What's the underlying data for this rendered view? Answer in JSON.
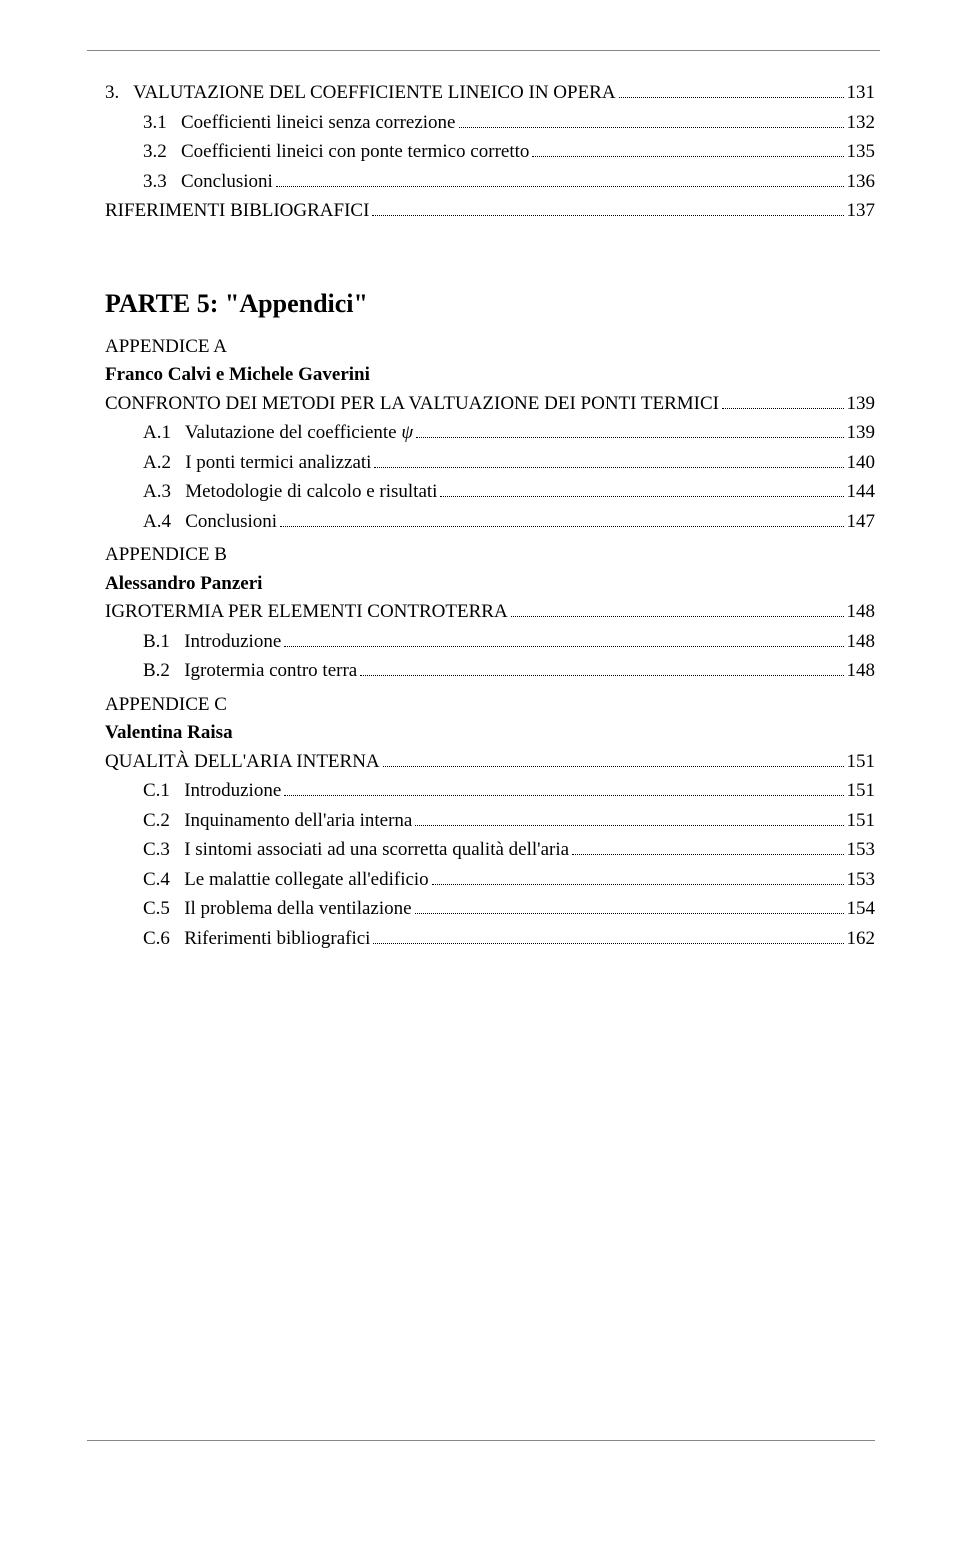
{
  "hr_color": "#888888",
  "top_section": {
    "heading": {
      "num": "3.",
      "title": "VALUTAZIONE DEL COEFFICIENTE LINEICO IN OPERA",
      "page": "131"
    },
    "items": [
      {
        "num": "3.1",
        "title": "Coefficienti lineici senza correzione",
        "page": "132"
      },
      {
        "num": "3.2",
        "title": "Coefficienti lineici con ponte termico corretto",
        "page": "135"
      },
      {
        "num": "3.3",
        "title": "Conclusioni",
        "page": "136"
      }
    ],
    "refs": {
      "title": "RIFERIMENTI BIBLIOGRAFICI",
      "page": "137"
    }
  },
  "part5": {
    "title": "PARTE 5: \"Appendici\"",
    "appendixA": {
      "label": "APPENDICE A",
      "authors": "Franco Calvi e Michele Gaverini",
      "heading": {
        "title": "CONFRONTO DEI METODI PER LA VALTUAZIONE DEI PONTI TERMICI",
        "page": "139"
      },
      "items": [
        {
          "num": "A.1",
          "title_pre": "Valutazione del coefficiente ",
          "title_ital": "ψ",
          "page": "139"
        },
        {
          "num": "A.2",
          "title": "I ponti termici analizzati",
          "page": "140"
        },
        {
          "num": "A.3",
          "title": "Metodologie di calcolo e risultati",
          "page": "144"
        },
        {
          "num": "A.4",
          "title": "Conclusioni",
          "page": "147"
        }
      ]
    },
    "appendixB": {
      "label": "APPENDICE B",
      "authors": "Alessandro Panzeri",
      "heading": {
        "title": "IGROTERMIA PER ELEMENTI CONTROTERRA",
        "page": "148"
      },
      "items": [
        {
          "num": "B.1",
          "title": "Introduzione",
          "page": "148"
        },
        {
          "num": "B.2",
          "title": "Igrotermia contro terra",
          "page": "148"
        }
      ]
    },
    "appendixC": {
      "label": "APPENDICE C",
      "authors": "Valentina Raisa",
      "heading": {
        "title": "QUALITÀ DELL'ARIA INTERNA",
        "page": "151"
      },
      "items": [
        {
          "num": "C.1",
          "title": "Introduzione",
          "page": "151"
        },
        {
          "num": "C.2",
          "title": "Inquinamento dell'aria interna",
          "page": "151"
        },
        {
          "num": "C.3",
          "title": "I sintomi associati ad una scorretta qualità dell'aria",
          "page": "153"
        },
        {
          "num": "C.4",
          "title": "Le malattie collegate all'edificio",
          "page": "153"
        },
        {
          "num": "C.5",
          "title": "Il problema della ventilazione",
          "page": "154"
        },
        {
          "num": "C.6",
          "title": "Riferimenti bibliografici",
          "page": "162"
        }
      ]
    }
  }
}
